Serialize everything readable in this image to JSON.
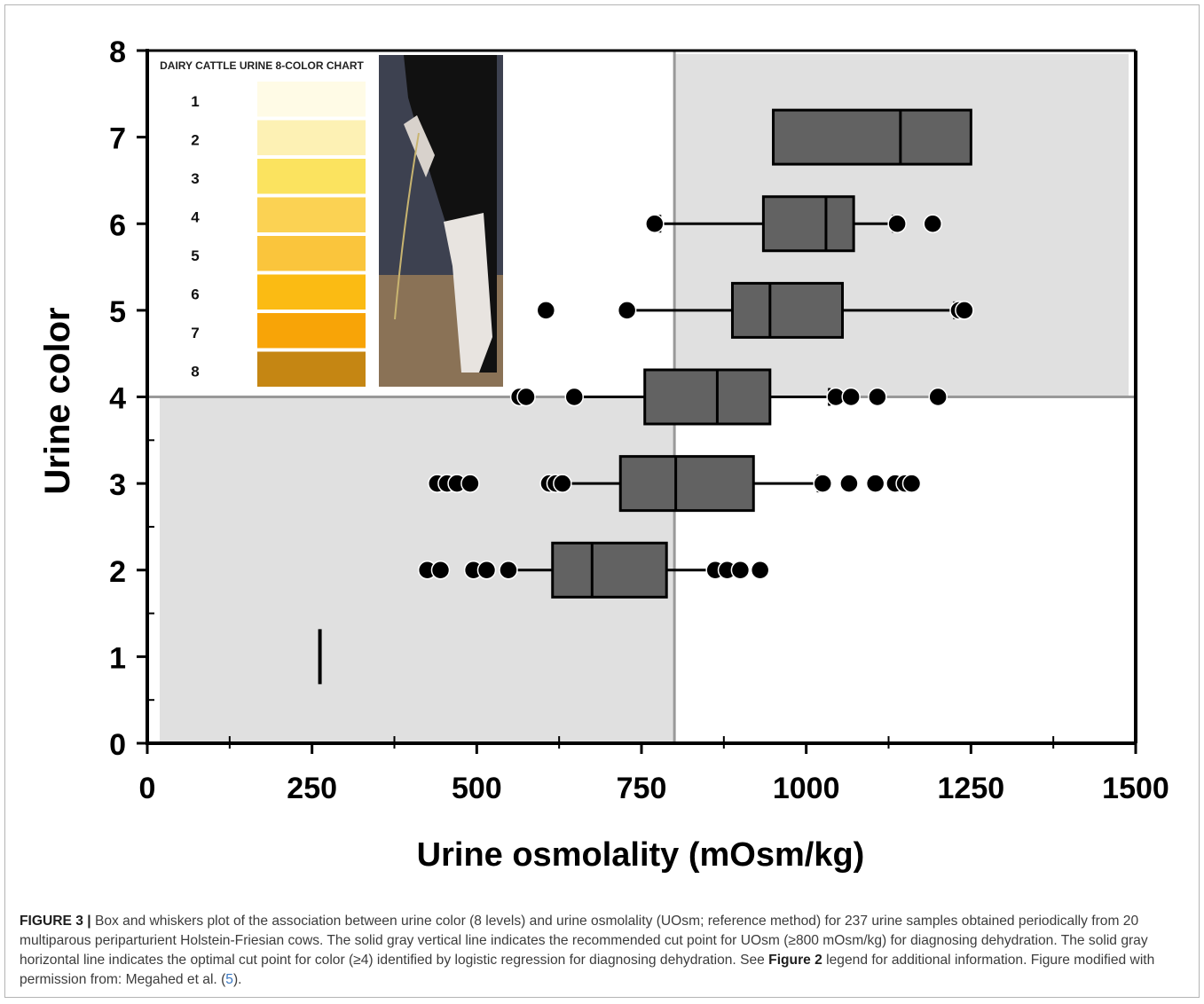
{
  "chart_data": {
    "type": "box",
    "xlabel": "Urine osmolality (mOsm/kg)",
    "ylabel": "Urine color",
    "xlim": [
      0,
      1500
    ],
    "ylim": [
      0,
      8
    ],
    "xticks": [
      0,
      250,
      500,
      750,
      1000,
      1250,
      1500
    ],
    "yticks": [
      0,
      1,
      2,
      3,
      4,
      5,
      6,
      7,
      8
    ],
    "cut_points": {
      "x": 800,
      "y": 4
    },
    "shaded_quadrants": [
      "x<800,y<4",
      "x>=800,y>=4"
    ],
    "boxes": [
      {
        "category": 1,
        "q1": 262,
        "median": 262,
        "q3": 262,
        "whisker_low": 262,
        "whisker_high": 262,
        "outliers": []
      },
      {
        "category": 2,
        "q1": 615,
        "median": 675,
        "q3": 788,
        "whisker_low": 550,
        "whisker_high": 862,
        "outliers": [
          425,
          445,
          495,
          515,
          548,
          862,
          880,
          900,
          930
        ]
      },
      {
        "category": 3,
        "q1": 718,
        "median": 802,
        "q3": 920,
        "whisker_low": 632,
        "whisker_high": 1018,
        "outliers": [
          440,
          455,
          470,
          490,
          610,
          620,
          630,
          1025,
          1065,
          1105,
          1135,
          1150,
          1160
        ]
      },
      {
        "category": 4,
        "q1": 755,
        "median": 865,
        "q3": 945,
        "whisker_low": 648,
        "whisker_high": 1035,
        "outliers": [
          565,
          575,
          648,
          1045,
          1068,
          1108,
          1200
        ]
      },
      {
        "category": 5,
        "q1": 888,
        "median": 945,
        "q3": 1055,
        "whisker_low": 728,
        "whisker_high": 1225,
        "outliers": [
          605,
          728,
          1232,
          1240
        ]
      },
      {
        "category": 6,
        "q1": 935,
        "median": 1030,
        "q3": 1072,
        "whisker_low": 778,
        "whisker_high": 1132,
        "outliers": [
          770,
          1138,
          1192
        ]
      },
      {
        "category": 7,
        "q1": 950,
        "median": 1143,
        "q3": 1250,
        "whisker_low": 950,
        "whisker_high": 1250,
        "outliers": []
      }
    ],
    "colors": {
      "box_fill": "#626262",
      "shade": "#e0e0e0",
      "cut_line": "#999999",
      "outlier": "#000000"
    }
  },
  "inset": {
    "title": "DAIRY CATTLE URINE 8-COLOR CHART",
    "levels": [
      {
        "label": "1",
        "color": "#fffbe6"
      },
      {
        "label": "2",
        "color": "#fdf1b4"
      },
      {
        "label": "3",
        "color": "#fbe35f"
      },
      {
        "label": "4",
        "color": "#fbd253"
      },
      {
        "label": "5",
        "color": "#fac53c"
      },
      {
        "label": "6",
        "color": "#fbbb13"
      },
      {
        "label": "7",
        "color": "#f8a407"
      },
      {
        "label": "8",
        "color": "#c58613"
      }
    ],
    "photo_icon": "cow-urinating-photo"
  },
  "caption": {
    "label": "FIGURE 3 |",
    "text_before": " Box and whiskers plot of the association between urine color (8 levels) and urine osmolality (UOsm; reference method) for 237 urine samples obtained periodically from 20 multiparous periparturient Holstein-Friesian cows. The solid gray vertical line indicates the recommended cut point for UOsm (≥800 mOsm/kg) for diagnosing dehydration. The solid gray horizontal line indicates the optimal cut point for color (≥4) identified by logistic regression for diagnosing dehydration. See ",
    "fig_ref": "Figure 2",
    "text_after": " legend for additional information. Figure modified with permission from: Megahed et al. (",
    "ref_num": "5",
    "text_end": ")."
  }
}
